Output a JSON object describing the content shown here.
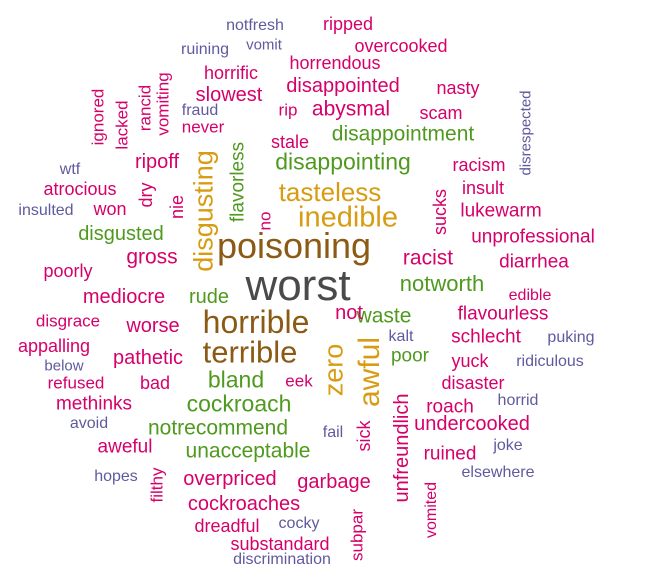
{
  "palette": {
    "magenta": "#d6006b",
    "purple": "#5f5a9e",
    "green": "#4f9a1e",
    "gold": "#d89c13",
    "brown": "#8b5a14",
    "gray": "#4a4a4a"
  },
  "words": [
    {
      "text": "worst",
      "color": "gray",
      "orientation": "horizontal"
    },
    {
      "text": "poisoning",
      "color": "brown",
      "orientation": "horizontal"
    },
    {
      "text": "horrible",
      "color": "brown",
      "orientation": "horizontal"
    },
    {
      "text": "terrible",
      "color": "brown",
      "orientation": "horizontal"
    },
    {
      "text": "inedible",
      "color": "gold",
      "orientation": "horizontal"
    },
    {
      "text": "tasteless",
      "color": "gold",
      "orientation": "horizontal"
    },
    {
      "text": "disgusting",
      "color": "gold",
      "orientation": "vertical"
    },
    {
      "text": "awful",
      "color": "gold",
      "orientation": "vertical"
    },
    {
      "text": "zero",
      "color": "gold",
      "orientation": "vertical"
    },
    {
      "text": "disappointing",
      "color": "green",
      "orientation": "horizontal"
    },
    {
      "text": "disappointment",
      "color": "green",
      "orientation": "horizontal"
    },
    {
      "text": "bland",
      "color": "green",
      "orientation": "horizontal"
    },
    {
      "text": "cockroach",
      "color": "green",
      "orientation": "horizontal"
    },
    {
      "text": "notrecommend",
      "color": "green",
      "orientation": "horizontal"
    },
    {
      "text": "unacceptable",
      "color": "green",
      "orientation": "horizontal"
    },
    {
      "text": "notworth",
      "color": "green",
      "orientation": "horizontal"
    },
    {
      "text": "waste",
      "color": "green",
      "orientation": "horizontal"
    },
    {
      "text": "disgusted",
      "color": "green",
      "orientation": "horizontal"
    },
    {
      "text": "rude",
      "color": "green",
      "orientation": "horizontal"
    },
    {
      "text": "poor",
      "color": "green",
      "orientation": "horizontal"
    },
    {
      "text": "flavorless",
      "color": "green",
      "orientation": "vertical"
    },
    {
      "text": "notfresh",
      "color": "purple",
      "orientation": "horizontal"
    },
    {
      "text": "ruining",
      "color": "purple",
      "orientation": "horizontal"
    },
    {
      "text": "vomit",
      "color": "purple",
      "orientation": "horizontal"
    },
    {
      "text": "fraud",
      "color": "purple",
      "orientation": "horizontal"
    },
    {
      "text": "wtf",
      "color": "purple",
      "orientation": "horizontal"
    },
    {
      "text": "insulted",
      "color": "purple",
      "orientation": "horizontal"
    },
    {
      "text": "disrespected",
      "color": "purple",
      "orientation": "vertical"
    },
    {
      "text": "below",
      "color": "purple",
      "orientation": "horizontal"
    },
    {
      "text": "avoid",
      "color": "purple",
      "orientation": "horizontal"
    },
    {
      "text": "hopes",
      "color": "purple",
      "orientation": "horizontal"
    },
    {
      "text": "cocky",
      "color": "purple",
      "orientation": "horizontal"
    },
    {
      "text": "discrimination",
      "color": "purple",
      "orientation": "horizontal"
    },
    {
      "text": "fail",
      "color": "purple",
      "orientation": "horizontal"
    },
    {
      "text": "puking",
      "color": "purple",
      "orientation": "horizontal"
    },
    {
      "text": "ridiculous",
      "color": "purple",
      "orientation": "horizontal"
    },
    {
      "text": "horrid",
      "color": "purple",
      "orientation": "horizontal"
    },
    {
      "text": "joke",
      "color": "purple",
      "orientation": "horizontal"
    },
    {
      "text": "elsewhere",
      "color": "purple",
      "orientation": "horizontal"
    },
    {
      "text": "kalt",
      "color": "purple",
      "orientation": "horizontal"
    },
    {
      "text": "ripped",
      "color": "magenta",
      "orientation": "horizontal"
    },
    {
      "text": "overcooked",
      "color": "magenta",
      "orientation": "horizontal"
    },
    {
      "text": "horrendous",
      "color": "magenta",
      "orientation": "horizontal"
    },
    {
      "text": "horrific",
      "color": "magenta",
      "orientation": "horizontal"
    },
    {
      "text": "disappointed",
      "color": "magenta",
      "orientation": "horizontal"
    },
    {
      "text": "nasty",
      "color": "magenta",
      "orientation": "horizontal"
    },
    {
      "text": "slowest",
      "color": "magenta",
      "orientation": "horizontal"
    },
    {
      "text": "rip",
      "color": "magenta",
      "orientation": "horizontal"
    },
    {
      "text": "abysmal",
      "color": "magenta",
      "orientation": "horizontal"
    },
    {
      "text": "scam",
      "color": "magenta",
      "orientation": "horizontal"
    },
    {
      "text": "never",
      "color": "magenta",
      "orientation": "horizontal"
    },
    {
      "text": "stale",
      "color": "magenta",
      "orientation": "horizontal"
    },
    {
      "text": "ignored",
      "color": "magenta",
      "orientation": "vertical"
    },
    {
      "text": "lacked",
      "color": "magenta",
      "orientation": "vertical"
    },
    {
      "text": "rancid",
      "color": "magenta",
      "orientation": "vertical"
    },
    {
      "text": "vomiting",
      "color": "magenta",
      "orientation": "vertical"
    },
    {
      "text": "ripoff",
      "color": "magenta",
      "orientation": "horizontal"
    },
    {
      "text": "racism",
      "color": "magenta",
      "orientation": "horizontal"
    },
    {
      "text": "atrocious",
      "color": "magenta",
      "orientation": "horizontal"
    },
    {
      "text": "dry",
      "color": "magenta",
      "orientation": "vertical"
    },
    {
      "text": "nie",
      "color": "magenta",
      "orientation": "vertical"
    },
    {
      "text": "won",
      "color": "magenta",
      "orientation": "horizontal"
    },
    {
      "text": "no",
      "color": "magenta",
      "orientation": "vertical"
    },
    {
      "text": "insult",
      "color": "magenta",
      "orientation": "horizontal"
    },
    {
      "text": "sucks",
      "color": "magenta",
      "orientation": "vertical"
    },
    {
      "text": "lukewarm",
      "color": "magenta",
      "orientation": "horizontal"
    },
    {
      "text": "unprofessional",
      "color": "magenta",
      "orientation": "horizontal"
    },
    {
      "text": "racist",
      "color": "magenta",
      "orientation": "horizontal"
    },
    {
      "text": "diarrhea",
      "color": "magenta",
      "orientation": "horizontal"
    },
    {
      "text": "gross",
      "color": "magenta",
      "orientation": "horizontal"
    },
    {
      "text": "poorly",
      "color": "magenta",
      "orientation": "horizontal"
    },
    {
      "text": "mediocre",
      "color": "magenta",
      "orientation": "horizontal"
    },
    {
      "text": "edible",
      "color": "magenta",
      "orientation": "horizontal"
    },
    {
      "text": "disgrace",
      "color": "magenta",
      "orientation": "horizontal"
    },
    {
      "text": "not",
      "color": "magenta",
      "orientation": "horizontal"
    },
    {
      "text": "flavourless",
      "color": "magenta",
      "orientation": "horizontal"
    },
    {
      "text": "worse",
      "color": "magenta",
      "orientation": "horizontal"
    },
    {
      "text": "schlecht",
      "color": "magenta",
      "orientation": "horizontal"
    },
    {
      "text": "appalling",
      "color": "magenta",
      "orientation": "horizontal"
    },
    {
      "text": "pathetic",
      "color": "magenta",
      "orientation": "horizontal"
    },
    {
      "text": "yuck",
      "color": "magenta",
      "orientation": "horizontal"
    },
    {
      "text": "refused",
      "color": "magenta",
      "orientation": "horizontal"
    },
    {
      "text": "bad",
      "color": "magenta",
      "orientation": "horizontal"
    },
    {
      "text": "eek",
      "color": "magenta",
      "orientation": "horizontal"
    },
    {
      "text": "disaster",
      "color": "magenta",
      "orientation": "horizontal"
    },
    {
      "text": "methinks",
      "color": "magenta",
      "orientation": "horizontal"
    },
    {
      "text": "roach",
      "color": "magenta",
      "orientation": "horizontal"
    },
    {
      "text": "undercooked",
      "color": "magenta",
      "orientation": "horizontal"
    },
    {
      "text": "aweful",
      "color": "magenta",
      "orientation": "horizontal"
    },
    {
      "text": "ruined",
      "color": "magenta",
      "orientation": "horizontal"
    },
    {
      "text": "overpriced",
      "color": "magenta",
      "orientation": "horizontal"
    },
    {
      "text": "garbage",
      "color": "magenta",
      "orientation": "horizontal"
    },
    {
      "text": "cockroaches",
      "color": "magenta",
      "orientation": "horizontal"
    },
    {
      "text": "dreadful",
      "color": "magenta",
      "orientation": "horizontal"
    },
    {
      "text": "substandard",
      "color": "magenta",
      "orientation": "horizontal"
    },
    {
      "text": "filthy",
      "color": "magenta",
      "orientation": "vertical"
    },
    {
      "text": "sick",
      "color": "magenta",
      "orientation": "vertical"
    },
    {
      "text": "subpar",
      "color": "magenta",
      "orientation": "vertical"
    },
    {
      "text": "unfreundlich",
      "color": "magenta",
      "orientation": "vertical"
    },
    {
      "text": "vomited",
      "color": "magenta",
      "orientation": "vertical"
    }
  ]
}
